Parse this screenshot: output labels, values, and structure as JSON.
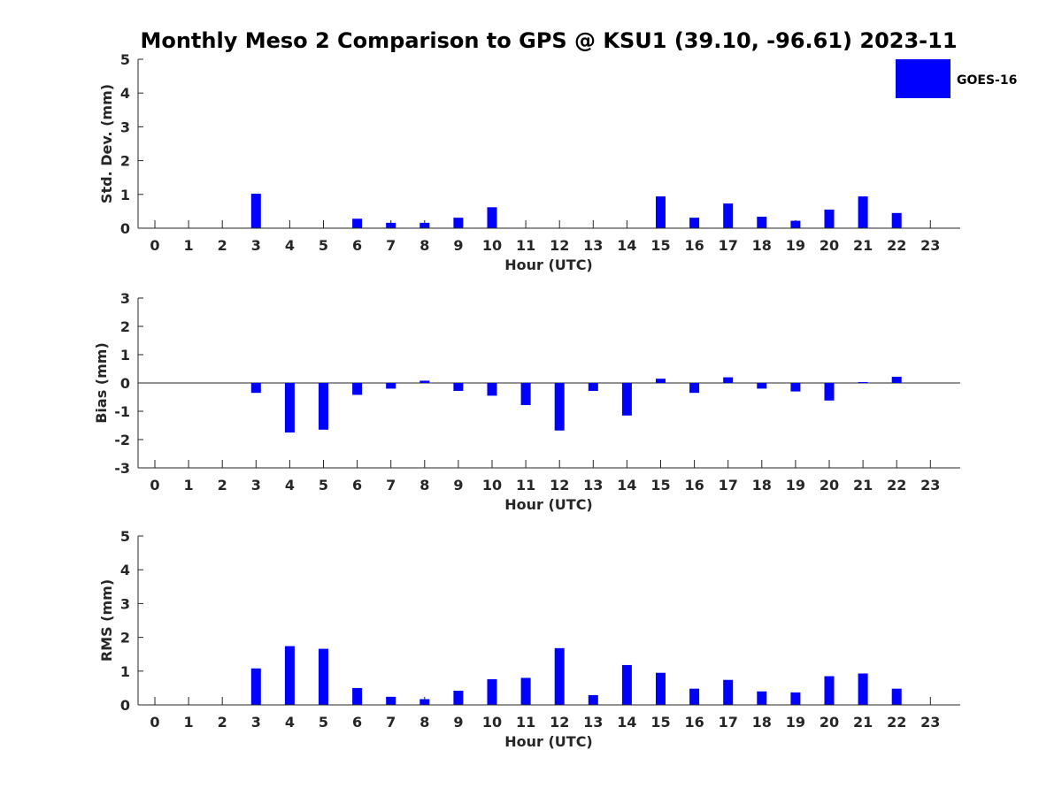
{
  "title": "Monthly Meso 2 Comparison to GPS @ KSU1 (39.10, -96.61) 2023-11",
  "legend": {
    "label": "GOES-16",
    "color": "#0000ff",
    "placement": "top-right"
  },
  "chart_data": [
    {
      "type": "bar",
      "ylabel": "Std. Dev. (mm)",
      "xlabel": "Hour (UTC)",
      "ylim": [
        0,
        5
      ],
      "yticks": [
        "0",
        "1",
        "2",
        "3",
        "4",
        "5"
      ],
      "categories": [
        "0",
        "1",
        "2",
        "3",
        "4",
        "5",
        "6",
        "7",
        "8",
        "9",
        "10",
        "11",
        "12",
        "13",
        "14",
        "15",
        "16",
        "17",
        "18",
        "19",
        "20",
        "21",
        "22",
        "23"
      ],
      "series": [
        {
          "name": "GOES-16",
          "values": [
            null,
            null,
            null,
            1.02,
            null,
            null,
            0.28,
            0.16,
            0.16,
            0.31,
            0.62,
            null,
            null,
            null,
            null,
            0.94,
            0.31,
            0.73,
            0.34,
            0.22,
            0.55,
            0.94,
            0.45,
            null
          ]
        }
      ]
    },
    {
      "type": "bar",
      "ylabel": "Bias (mm)",
      "xlabel": "Hour (UTC)",
      "ylim": [
        -3,
        3
      ],
      "yticks": [
        "-3",
        "-2",
        "-1",
        "0",
        "1",
        "2",
        "3"
      ],
      "categories": [
        "0",
        "1",
        "2",
        "3",
        "4",
        "5",
        "6",
        "7",
        "8",
        "9",
        "10",
        "11",
        "12",
        "13",
        "14",
        "15",
        "16",
        "17",
        "18",
        "19",
        "20",
        "21",
        "22",
        "23"
      ],
      "series": [
        {
          "name": "GOES-16",
          "values": [
            null,
            null,
            null,
            -0.35,
            -1.75,
            -1.65,
            -0.42,
            -0.2,
            0.08,
            -0.28,
            -0.45,
            -0.78,
            -1.68,
            -0.28,
            -1.15,
            0.15,
            -0.35,
            0.2,
            -0.2,
            -0.3,
            -0.62,
            0.03,
            0.22,
            null
          ]
        }
      ]
    },
    {
      "type": "bar",
      "ylabel": "RMS (mm)",
      "xlabel": "Hour (UTC)",
      "ylim": [
        0,
        5
      ],
      "yticks": [
        "0",
        "1",
        "2",
        "3",
        "4",
        "5"
      ],
      "categories": [
        "0",
        "1",
        "2",
        "3",
        "4",
        "5",
        "6",
        "7",
        "8",
        "9",
        "10",
        "11",
        "12",
        "13",
        "14",
        "15",
        "16",
        "17",
        "18",
        "19",
        "20",
        "21",
        "22",
        "23"
      ],
      "series": [
        {
          "name": "GOES-16",
          "values": [
            null,
            null,
            null,
            1.08,
            1.74,
            1.66,
            0.5,
            0.24,
            0.17,
            0.42,
            0.76,
            0.8,
            1.68,
            0.29,
            1.18,
            0.95,
            0.48,
            0.74,
            0.4,
            0.37,
            0.85,
            0.93,
            0.48,
            null
          ]
        }
      ]
    }
  ]
}
